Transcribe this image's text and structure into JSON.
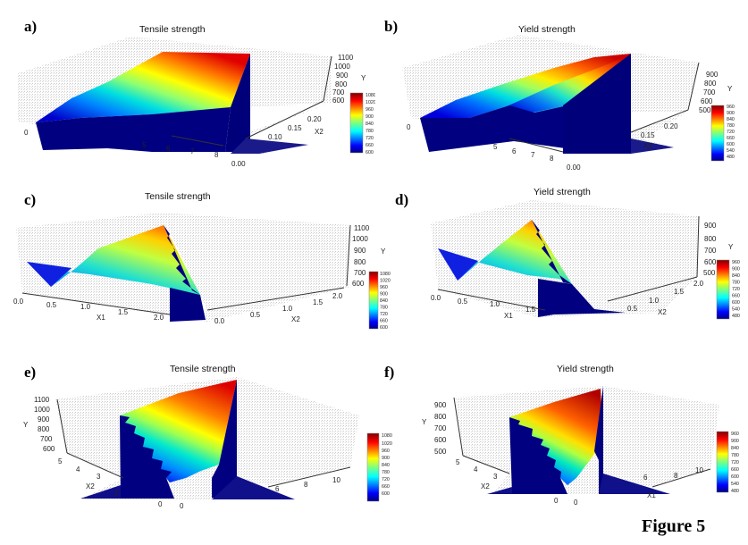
{
  "figure_label": "Figure 5",
  "chart_data": [
    {
      "id": "a",
      "panel_label": "a)",
      "type": "surface3d",
      "title": "Tensile strength",
      "zlabel": "Y",
      "xlabel": "X1",
      "ylabel": "X2",
      "z_ticks": [
        "1100",
        "1000",
        "900",
        "800",
        "700",
        "600"
      ],
      "x_ticks": [
        "0",
        "5",
        "6",
        "7",
        "8"
      ],
      "y_ticks": [
        "0.00",
        "0.10",
        "0.15",
        "0.20"
      ],
      "colorbar_ticks": [
        "1080",
        "1020",
        "960",
        "900",
        "840",
        "780",
        "720",
        "660",
        "600"
      ],
      "zlim": [
        600,
        1100
      ],
      "clim": [
        600,
        1080
      ]
    },
    {
      "id": "b",
      "panel_label": "b)",
      "type": "surface3d",
      "title": "Yield strength",
      "zlabel": "Y",
      "xlabel": "X1",
      "ylabel": "X2",
      "z_ticks": [
        "900",
        "800",
        "700",
        "600",
        "500"
      ],
      "x_ticks": [
        "0",
        "5",
        "6",
        "7",
        "8"
      ],
      "y_ticks": [
        "0.00",
        "0.15",
        "0.20"
      ],
      "colorbar_ticks": [
        "960",
        "900",
        "840",
        "780",
        "720",
        "660",
        "600",
        "540",
        "480"
      ],
      "zlim": [
        500,
        960
      ],
      "clim": [
        480,
        960
      ]
    },
    {
      "id": "c",
      "panel_label": "c)",
      "type": "surface3d",
      "title": "Tensile strength",
      "zlabel": "Y",
      "xlabel": "X1",
      "ylabel": "X2",
      "z_ticks": [
        "1100",
        "1000",
        "900",
        "800",
        "700",
        "600"
      ],
      "x_ticks": [
        "0.0",
        "0.5",
        "1.0",
        "1.5",
        "2.0"
      ],
      "y_ticks": [
        "0.0",
        "0.5",
        "1.0",
        "1.5",
        "2.0"
      ],
      "colorbar_ticks": [
        "1080",
        "1020",
        "960",
        "900",
        "840",
        "780",
        "720",
        "660",
        "600"
      ],
      "zlim": [
        600,
        1100
      ],
      "clim": [
        600,
        1080
      ]
    },
    {
      "id": "d",
      "panel_label": "d)",
      "type": "surface3d",
      "title": "Yield strength",
      "zlabel": "Y",
      "xlabel": "X1",
      "ylabel": "X2",
      "z_ticks": [
        "900",
        "800",
        "700",
        "600",
        "500"
      ],
      "x_ticks": [
        "0.0",
        "0.5",
        "1.0",
        "1.5"
      ],
      "y_ticks": [
        "0.5",
        "1.0",
        "1.5",
        "2.0"
      ],
      "colorbar_ticks": [
        "960",
        "900",
        "840",
        "780",
        "720",
        "660",
        "600",
        "540",
        "480"
      ],
      "zlim": [
        500,
        960
      ],
      "clim": [
        480,
        960
      ]
    },
    {
      "id": "e",
      "panel_label": "e)",
      "type": "surface3d",
      "title": "Tensile strength",
      "zlabel": "Y",
      "xlabel": "X1",
      "ylabel": "X2",
      "z_ticks": [
        "1100",
        "1000",
        "900",
        "800",
        "700",
        "600"
      ],
      "x_ticks": [
        "0",
        "6",
        "8",
        "10"
      ],
      "y_ticks": [
        "5",
        "4",
        "3",
        "2",
        "0"
      ],
      "colorbar_ticks": [
        "1080",
        "1020",
        "960",
        "900",
        "840",
        "780",
        "720",
        "660",
        "600"
      ],
      "zlim": [
        600,
        1100
      ],
      "clim": [
        600,
        1080
      ]
    },
    {
      "id": "f",
      "panel_label": "f)",
      "type": "surface3d",
      "title": "Yield strength",
      "zlabel": "Y",
      "xlabel": "X1",
      "ylabel": "X2",
      "z_ticks": [
        "900",
        "800",
        "700",
        "600",
        "500"
      ],
      "x_ticks": [
        "0",
        "6",
        "8",
        "10"
      ],
      "y_ticks": [
        "5",
        "4",
        "3",
        "0"
      ],
      "colorbar_ticks": [
        "960",
        "900",
        "840",
        "780",
        "720",
        "660",
        "600",
        "540",
        "480"
      ],
      "zlim": [
        500,
        960
      ],
      "clim": [
        480,
        960
      ]
    }
  ],
  "colors": {
    "wall": "#00007f",
    "grid_bg": "#e8e8e8",
    "jet": [
      "#00007f",
      "#0000ff",
      "#007fff",
      "#00ffff",
      "#7fff7f",
      "#ffff00",
      "#ff7f00",
      "#ff0000",
      "#7f0000"
    ]
  }
}
